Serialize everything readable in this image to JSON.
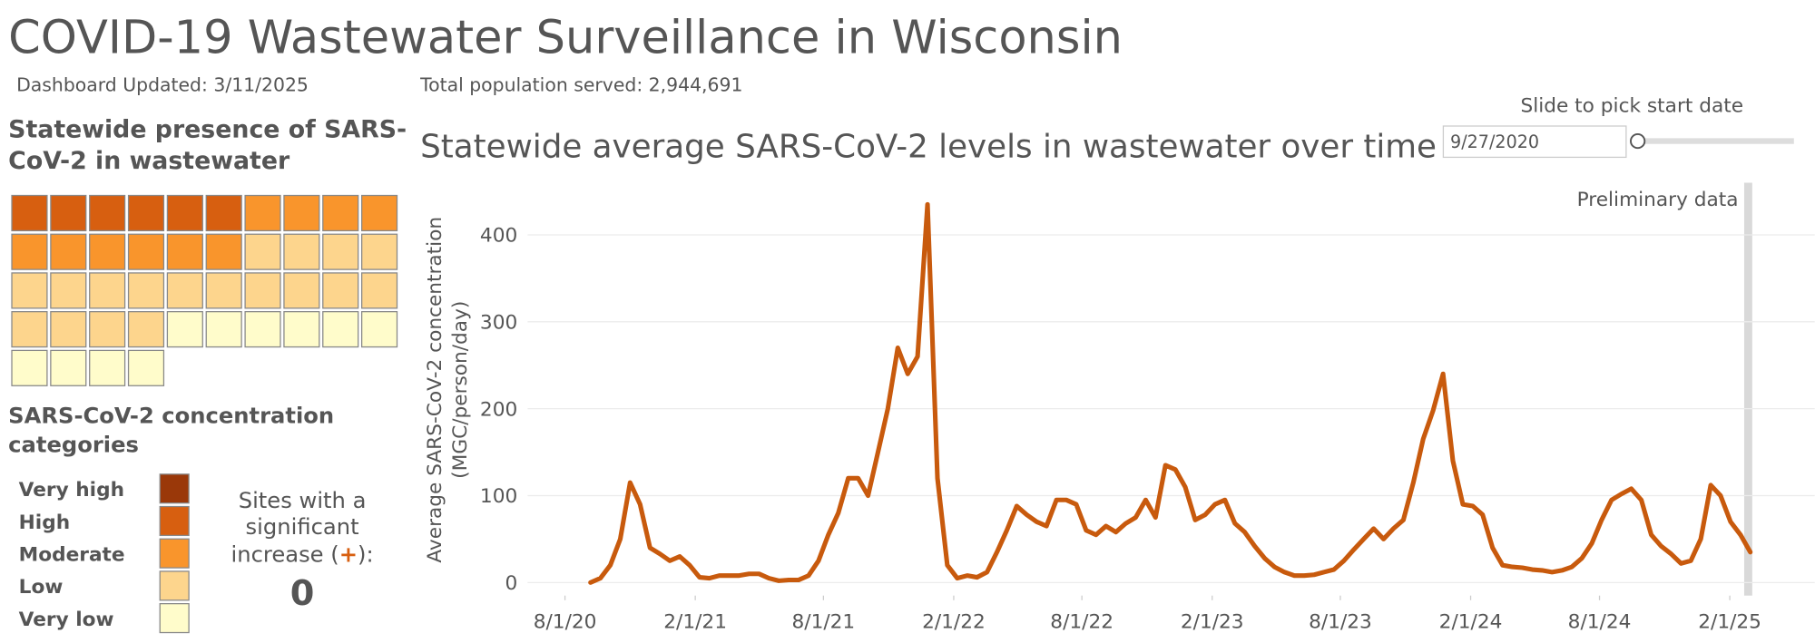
{
  "header": {
    "title": "COVID-19 Wastewater Surveillance in Wisconsin",
    "updated": "Dashboard Updated: 3/11/2025",
    "population": "Total population served: 2,944,691"
  },
  "waffle": {
    "title": [
      "Statewide presence of SARS-",
      "CoV-2 in wastewater"
    ],
    "counts": [
      0,
      6,
      10,
      18,
      10
    ]
  },
  "legend": {
    "title": [
      "SARS-CoV-2 concentration",
      "categories"
    ],
    "labels": [
      "Very high",
      "High",
      "Moderate",
      "Low",
      "Very low"
    ],
    "colors": [
      "#9a3809",
      "#d75f10",
      "#f9952c",
      "#fdd58d",
      "#fffccb"
    ]
  },
  "sites_increase": {
    "lines": [
      "Sites with a",
      "significant"
    ],
    "prefix": "increase (",
    "symbol": "+",
    "suffix": "):",
    "value": 0
  },
  "slider": {
    "label": "Slide to pick start date",
    "value": "9/27/2020"
  },
  "chart_data": {
    "type": "line",
    "title": "Statewide average SARS-CoV-2 levels in wastewater over time",
    "y_label": [
      "Average SARS-CoV-2 concentration",
      "(MGC/person/day)"
    ],
    "annotation": "Preliminary data",
    "color": "#c85a0d",
    "x": [
      "2020-09-06",
      "2020-09-20",
      "2020-10-04",
      "2020-10-18",
      "2020-11-01",
      "2020-11-15",
      "2020-11-29",
      "2020-12-13",
      "2020-12-27",
      "2021-01-10",
      "2021-01-24",
      "2021-02-07",
      "2021-02-21",
      "2021-03-07",
      "2021-03-21",
      "2021-04-04",
      "2021-04-18",
      "2021-05-02",
      "2021-05-16",
      "2021-05-30",
      "2021-06-13",
      "2021-06-27",
      "2021-07-11",
      "2021-07-25",
      "2021-08-08",
      "2021-08-22",
      "2021-09-05",
      "2021-09-19",
      "2021-10-03",
      "2021-10-17",
      "2021-10-31",
      "2021-11-14",
      "2021-11-28",
      "2021-12-12",
      "2021-12-26",
      "2022-01-09",
      "2022-01-23",
      "2022-02-06",
      "2022-02-20",
      "2022-03-06",
      "2022-03-20",
      "2022-04-03",
      "2022-04-17",
      "2022-05-01",
      "2022-05-15",
      "2022-05-29",
      "2022-06-12",
      "2022-06-26",
      "2022-07-10",
      "2022-07-24",
      "2022-08-07",
      "2022-08-21",
      "2022-09-04",
      "2022-09-18",
      "2022-10-02",
      "2022-10-16",
      "2022-10-30",
      "2022-11-13",
      "2022-11-27",
      "2022-12-11",
      "2022-12-25",
      "2023-01-08",
      "2023-01-22",
      "2023-02-05",
      "2023-02-19",
      "2023-03-05",
      "2023-03-19",
      "2023-04-02",
      "2023-04-16",
      "2023-04-30",
      "2023-05-14",
      "2023-05-28",
      "2023-06-11",
      "2023-06-25",
      "2023-07-09",
      "2023-07-23",
      "2023-08-06",
      "2023-08-20",
      "2023-09-03",
      "2023-09-17",
      "2023-10-01",
      "2023-10-15",
      "2023-10-29",
      "2023-11-12",
      "2023-11-26",
      "2023-12-10",
      "2023-12-24",
      "2024-01-07",
      "2024-01-21",
      "2024-02-04",
      "2024-02-18",
      "2024-03-03",
      "2024-03-17",
      "2024-03-31",
      "2024-04-14",
      "2024-04-28",
      "2024-05-12",
      "2024-05-26",
      "2024-06-09",
      "2024-06-23",
      "2024-07-07",
      "2024-07-21",
      "2024-08-04",
      "2024-08-18",
      "2024-09-01",
      "2024-09-15",
      "2024-09-29",
      "2024-10-13",
      "2024-10-27",
      "2024-11-10",
      "2024-11-24",
      "2024-12-08",
      "2024-12-22",
      "2025-01-05",
      "2025-01-19",
      "2025-02-02",
      "2025-02-16",
      "2025-03-02"
    ],
    "values": [
      0,
      5,
      20,
      50,
      115,
      90,
      40,
      33,
      25,
      30,
      20,
      6,
      5,
      8,
      8,
      8,
      10,
      10,
      5,
      2,
      3,
      3,
      8,
      25,
      55,
      80,
      120,
      120,
      100,
      150,
      200,
      270,
      240,
      260,
      435,
      120,
      20,
      5,
      8,
      6,
      12,
      35,
      60,
      88,
      78,
      70,
      65,
      95,
      95,
      90,
      60,
      55,
      65,
      58,
      68,
      75,
      95,
      75,
      135,
      130,
      110,
      72,
      78,
      90,
      95,
      68,
      58,
      42,
      28,
      18,
      12,
      8,
      8,
      9,
      12,
      15,
      25,
      38,
      50,
      62,
      50,
      62,
      72,
      115,
      165,
      198,
      240,
      140,
      90,
      88,
      78,
      40,
      20,
      18,
      17,
      15,
      14,
      12,
      14,
      18,
      28,
      45,
      72,
      95,
      102,
      108,
      95,
      55,
      42,
      33,
      22,
      25,
      50,
      112,
      100,
      70,
      55,
      35
    ],
    "xlim": [
      "2020-06-01",
      "2025-06-01"
    ],
    "xticks": [
      {
        "value": "2020-08-01",
        "label": "8/1/20"
      },
      {
        "value": "2021-02-01",
        "label": "2/1/21"
      },
      {
        "value": "2021-08-01",
        "label": "8/1/21"
      },
      {
        "value": "2022-02-01",
        "label": "2/1/22"
      },
      {
        "value": "2022-08-01",
        "label": "8/1/22"
      },
      {
        "value": "2023-02-01",
        "label": "2/1/23"
      },
      {
        "value": "2023-08-01",
        "label": "8/1/23"
      },
      {
        "value": "2024-02-01",
        "label": "2/1/24"
      },
      {
        "value": "2024-08-01",
        "label": "8/1/24"
      },
      {
        "value": "2025-02-01",
        "label": "2/1/25"
      }
    ],
    "ylim": [
      -15,
      460
    ],
    "yticks": [
      0,
      100,
      200,
      300,
      400
    ],
    "grid": true
  }
}
